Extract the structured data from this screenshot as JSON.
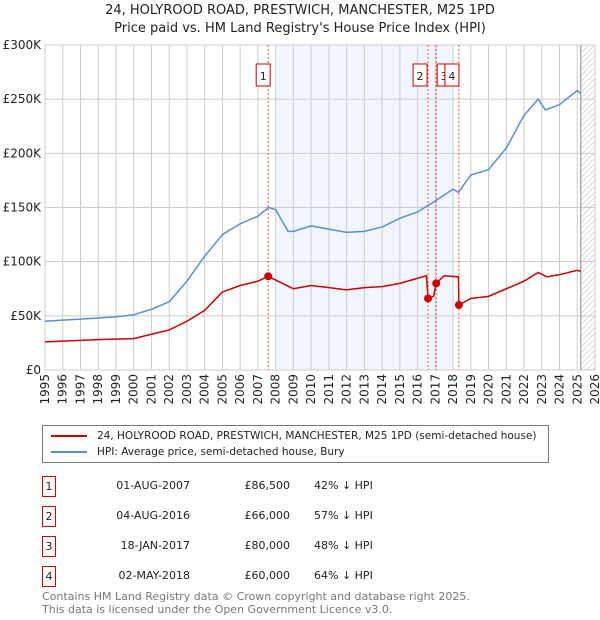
{
  "title_line1": "24, HOLYROOD ROAD, PRESTWICH, MANCHESTER, M25 1PD",
  "title_line2": "Price paid vs. HM Land Registry's House Price Index (HPI)",
  "chart_data": {
    "type": "line",
    "xlim": [
      1995,
      2026
    ],
    "ylim": [
      0,
      300000
    ],
    "x_ticks": [
      "1995",
      "1996",
      "1997",
      "1998",
      "1999",
      "2000",
      "2001",
      "2002",
      "2003",
      "2004",
      "2005",
      "2006",
      "2007",
      "2008",
      "2009",
      "2010",
      "2011",
      "2012",
      "2013",
      "2014",
      "2015",
      "2016",
      "2017",
      "2018",
      "2019",
      "2020",
      "2021",
      "2022",
      "2023",
      "2024",
      "2025",
      "2026"
    ],
    "y_ticks": [
      {
        "v": 0,
        "label": "£0"
      },
      {
        "v": 50000,
        "label": "£50K"
      },
      {
        "v": 100000,
        "label": "£100K"
      },
      {
        "v": 150000,
        "label": "£150K"
      },
      {
        "v": 200000,
        "label": "£200K"
      },
      {
        "v": 250000,
        "label": "£250K"
      },
      {
        "v": 300000,
        "label": "£300K"
      }
    ],
    "shaded_range": [
      2008,
      2018
    ],
    "forecast_from": 2025.2,
    "series": [
      {
        "name": "24, HOLYROOD ROAD, PRESTWICH, MANCHESTER, M25 1PD (semi-detached house)",
        "color": "#cc0000",
        "x": [
          1995,
          1998,
          2000,
          2001,
          2002,
          2003,
          2004,
          2005,
          2006,
          2007,
          2007.58,
          2008,
          2009,
          2010,
          2011,
          2012,
          2013,
          2014,
          2015,
          2016.5,
          2016.59,
          2016.9,
          2017.05,
          2017.5,
          2018.3,
          2018.33,
          2019,
          2020,
          2021,
          2022,
          2022.8,
          2023.3,
          2024,
          2025,
          2025.2
        ],
        "y": [
          26000,
          28000,
          29000,
          33000,
          37000,
          45000,
          55000,
          72000,
          78000,
          82000,
          86500,
          83000,
          75000,
          78000,
          76000,
          74000,
          76000,
          77000,
          80000,
          87000,
          66000,
          68000,
          80000,
          87000,
          86000,
          60000,
          66000,
          68000,
          75000,
          82000,
          90000,
          86000,
          88000,
          92000,
          91000
        ]
      },
      {
        "name": "HPI: Average price, semi-detached house, Bury",
        "color": "#5b8fd0",
        "x": [
          1995,
          1996,
          1997,
          1998,
          1999,
          2000,
          2001,
          2002,
          2003,
          2004,
          2005,
          2006,
          2007,
          2007.6,
          2008,
          2008.7,
          2009,
          2010,
          2011,
          2012,
          2013,
          2014,
          2015,
          2016,
          2017,
          2018,
          2018.3,
          2019,
          2020,
          2021,
          2022,
          2022.8,
          2023.2,
          2024,
          2025,
          2025.2
        ],
        "y": [
          45000,
          46000,
          47000,
          48000,
          49000,
          51000,
          56000,
          63000,
          82000,
          105000,
          125000,
          135000,
          142000,
          150000,
          148000,
          128000,
          128000,
          133000,
          130000,
          127000,
          128000,
          132000,
          140000,
          146000,
          156000,
          167000,
          164000,
          180000,
          185000,
          205000,
          235000,
          250000,
          240000,
          245000,
          258000,
          255000
        ]
      }
    ],
    "sales": [
      {
        "label": "1",
        "x": 2007.58,
        "y": 86500
      },
      {
        "label": "2",
        "x": 2016.59,
        "y": 66000
      },
      {
        "label": "3",
        "x": 2017.05,
        "y": 80000
      },
      {
        "label": "4",
        "x": 2018.33,
        "y": 60000
      }
    ]
  },
  "legend": [
    {
      "label": "24, HOLYROOD ROAD, PRESTWICH, MANCHESTER, M25 1PD (semi-detached house)",
      "color": "#cc0000"
    },
    {
      "label": "HPI: Average price, semi-detached house, Bury",
      "color": "#5b8fd0"
    }
  ],
  "transactions": [
    {
      "num": "1",
      "date": "01-AUG-2007",
      "price": "£86,500",
      "hpi": "42% ↓ HPI"
    },
    {
      "num": "2",
      "date": "04-AUG-2016",
      "price": "£66,000",
      "hpi": "57% ↓ HPI"
    },
    {
      "num": "3",
      "date": "18-JAN-2017",
      "price": "£80,000",
      "hpi": "48% ↓ HPI"
    },
    {
      "num": "4",
      "date": "02-MAY-2018",
      "price": "£60,000",
      "hpi": "64% ↓ HPI"
    }
  ],
  "footer_line1": "Contains HM Land Registry data © Crown copyright and database right 2025.",
  "footer_line2": "This data is licensed under the Open Government Licence v3.0."
}
